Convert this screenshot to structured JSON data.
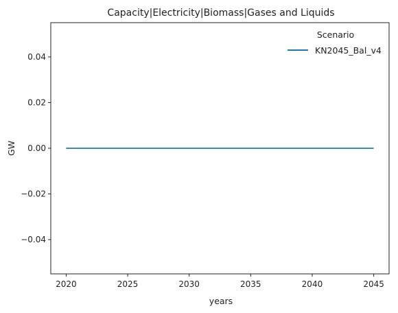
{
  "chart_data": {
    "type": "line",
    "title": "Capacity|Electricity|Biomass|Gases and Liquids",
    "xlabel": "years",
    "ylabel": "GW",
    "xlim": [
      2018.75,
      2046.25
    ],
    "ylim": [
      -0.055,
      0.055
    ],
    "x_ticks": [
      2020,
      2025,
      2030,
      2035,
      2040,
      2045
    ],
    "y_ticks": [
      -0.04,
      -0.02,
      0.0,
      0.02,
      0.04
    ],
    "y_tick_labels": [
      "−0.04",
      "−0.02",
      "0.00",
      "0.02",
      "0.04"
    ],
    "grid": false,
    "legend": {
      "title": "Scenario",
      "placement": "top-right"
    },
    "series": [
      {
        "name": "KN2045_Bal_v4",
        "color": "#1f77b4",
        "x": [
          2020,
          2025,
          2030,
          2035,
          2040,
          2045
        ],
        "values": [
          0,
          0,
          0,
          0,
          0,
          0
        ]
      }
    ]
  }
}
